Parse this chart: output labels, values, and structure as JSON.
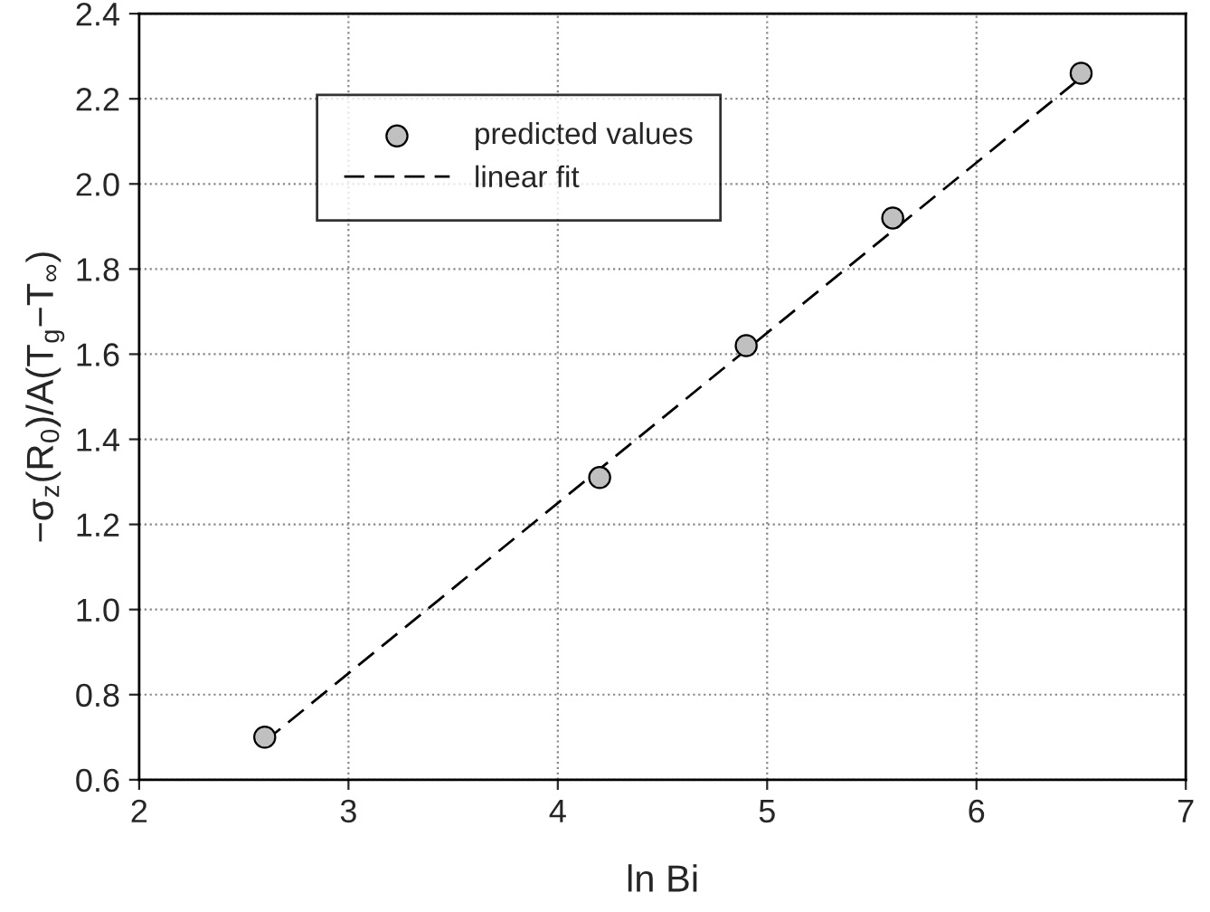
{
  "chart_data": {
    "type": "scatter",
    "xlabel": "ln Bi",
    "ylabel": "−σ$_{z}$(R$_{0}$)/A(T$_{g}$−T$_{∞}$)",
    "xlim": [
      2,
      7
    ],
    "xticks": [
      2,
      3,
      4,
      5,
      6,
      7
    ],
    "ylim": [
      0.6,
      2.4
    ],
    "yticks": [
      {
        "value": 0.6,
        "label": "0.6"
      },
      {
        "value": 0.8,
        "label": "0.8"
      },
      {
        "value": 1.0,
        "label": "1.0"
      },
      {
        "value": 1.2,
        "label": "1.2"
      },
      {
        "value": 1.4,
        "label": "1.4"
      },
      {
        "value": 1.6,
        "label": "1.6"
      },
      {
        "value": 1.8,
        "label": "1.8"
      },
      {
        "value": 2.0,
        "label": "2.0"
      },
      {
        "value": 2.2,
        "label": "2.2"
      },
      {
        "value": 2.4,
        "label": "2.4"
      }
    ],
    "grid": true,
    "legend": "top left",
    "series": [
      {
        "name": "predicted values",
        "marker": "circle",
        "color": "#c0c0c0",
        "x": [
          2.6,
          4.2,
          4.9,
          5.6,
          6.5
        ],
        "values": [
          0.7,
          1.31,
          1.62,
          1.92,
          2.26
        ]
      },
      {
        "name": "linear fit",
        "type": "line",
        "line_style": "dashed",
        "marker": "none",
        "color": "#000000",
        "x": [
          2.6,
          6.5
        ],
        "values": [
          0.69,
          2.25
        ]
      }
    ]
  }
}
